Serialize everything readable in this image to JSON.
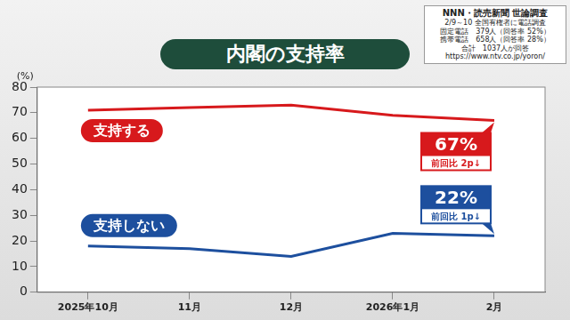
{
  "chart_data": {
    "type": "line",
    "title": "内閣の支持率",
    "y_label": "(%)",
    "categories": [
      "2025年10月",
      "11月",
      "12月",
      "2026年1月",
      "2月"
    ],
    "series": [
      {
        "name": "支持する",
        "color": "#d7191c",
        "values": [
          71,
          72,
          73,
          69,
          67
        ],
        "value_labels": [
          null,
          null,
          null,
          null,
          "67%"
        ],
        "annotation": "前回比 2p↓"
      },
      {
        "name": "支持しない",
        "color": "#1d4f9e",
        "values": [
          18,
          17,
          14,
          23,
          22
        ],
        "value_labels": [
          null,
          null,
          null,
          null,
          "22%"
        ],
        "annotation": "前回比 1p↓"
      }
    ],
    "ylim": [
      0,
      80
    ],
    "yticks": [
      0,
      10,
      20,
      30,
      40,
      50,
      60,
      70,
      80
    ],
    "grid": false,
    "note": [
      "NNN・読売新聞 世論調査",
      "2/9～10 全国有権者に電話調査",
      "固定電話　379人（回答率 52%）",
      "携帯電話　658人（回答率 28%）",
      "合計　1037人が回答",
      "https://www.ntv.co.jp/yoron/"
    ]
  }
}
